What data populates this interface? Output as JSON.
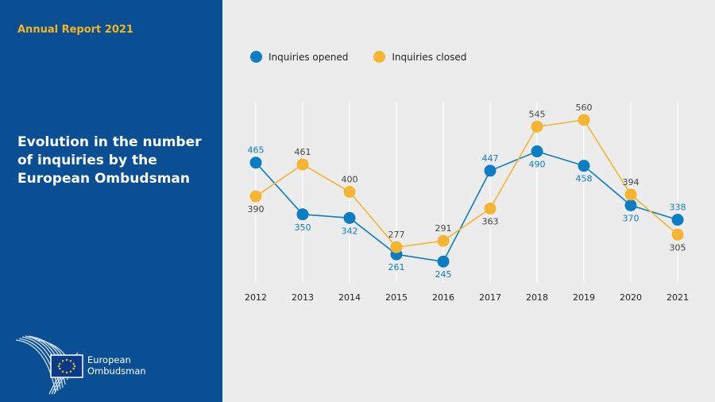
{
  "report_label": "Annual Report 2021",
  "title": "Evolution in the number of inquiries by the European Ombudsman",
  "logo": {
    "line1": "European",
    "line2": "Ombudsman"
  },
  "colors": {
    "opened": "#0b7dc3",
    "closed": "#f5b530",
    "panel": "#0a4f93"
  },
  "chart_data": {
    "type": "line",
    "title": "Evolution in the number of inquiries by the European Ombudsman",
    "categories": [
      "2012",
      "2013",
      "2014",
      "2015",
      "2016",
      "2017",
      "2018",
      "2019",
      "2020",
      "2021"
    ],
    "series": [
      {
        "name": "Inquiries opened",
        "values": [
          465,
          350,
          342,
          261,
          245,
          447,
          490,
          458,
          370,
          338
        ]
      },
      {
        "name": "Inquiries closed",
        "values": [
          390,
          461,
          400,
          277,
          291,
          363,
          545,
          560,
          394,
          305
        ]
      }
    ],
    "xlabel": "",
    "ylabel": "",
    "ylim": [
      150,
      650
    ],
    "grid": "vertical",
    "legend": "top"
  }
}
